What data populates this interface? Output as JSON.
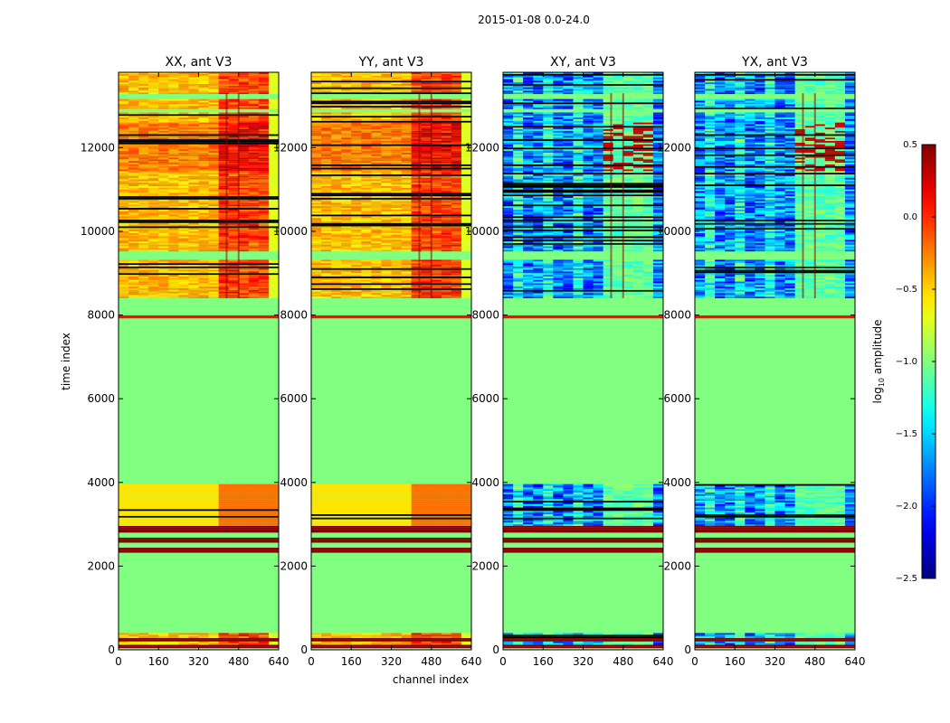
{
  "chart_data": {
    "type": "heatmap",
    "suptitle": "2015-01-08 0.0-24.0",
    "xlabel": "channel index",
    "ylabel": "time index",
    "xlim": [
      0,
      640
    ],
    "ylim": [
      0,
      13800
    ],
    "x_ticks": [
      0,
      160,
      320,
      480,
      640
    ],
    "y_ticks": [
      0,
      2000,
      4000,
      6000,
      8000,
      10000,
      12000
    ],
    "colorbar": {
      "label": "log10 amplitude",
      "label_main": "log",
      "label_sub": "10",
      "label_rest": " amplitude",
      "range": [
        -2.5,
        0.5
      ],
      "ticks": [
        "0.5",
        "0.0",
        "−0.5",
        "−1.0",
        "−1.5",
        "−2.0",
        "−2.5"
      ],
      "tick_values": [
        0.5,
        0.0,
        -0.5,
        -1.0,
        -1.5,
        -2.0,
        -2.5
      ],
      "colormap": "jet"
    },
    "panels": [
      {
        "title": "XX, ant V3",
        "kind": "auto",
        "background_value": -1.0
      },
      {
        "title": "YY, ant V3",
        "kind": "auto",
        "background_value": -1.0
      },
      {
        "title": "XY, ant V3",
        "kind": "cross",
        "background_value": -1.0
      },
      {
        "title": "YX, ant V3",
        "kind": "cross",
        "background_value": -1.0
      }
    ],
    "flagged_bands_time_index": [
      [
        40,
        120
      ],
      [
        200,
        280
      ],
      [
        2300,
        2420
      ],
      [
        2560,
        2680
      ],
      [
        2780,
        2950
      ]
    ],
    "empty_bands_time_index": [
      [
        400,
        2280
      ],
      [
        3950,
        7900
      ],
      [
        8000,
        8400
      ]
    ],
    "highlight_row_time_index": [
      7920,
      7990
    ],
    "bright_channels": [
      432,
      480
    ]
  }
}
